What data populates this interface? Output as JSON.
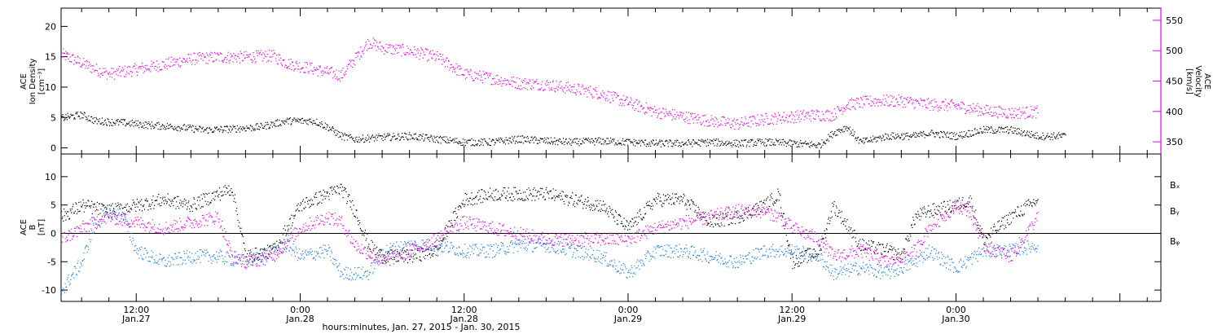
{
  "colors": {
    "density": "#000000",
    "velocity": "#e600e6",
    "bx": "#000000",
    "by": "#1e7fd8",
    "bz": "#e600e6",
    "frame": "#000000"
  },
  "x_axis": {
    "label": "hours:minutes, Jan. 27, 2015 - Jan. 30, 2015",
    "ticks": [
      {
        "time": "12:00",
        "day": "Jan.27",
        "hour": 12
      },
      {
        "time": "0:00",
        "day": "Jan.28",
        "hour": 24
      },
      {
        "time": "12:00",
        "day": "Jan.28",
        "hour": 36
      },
      {
        "time": "0:00",
        "day": "Jan.29",
        "hour": 48
      },
      {
        "time": "12:00",
        "day": "Jan.29",
        "hour": 60
      },
      {
        "time": "0:00",
        "day": "Jan.30",
        "hour": 72
      }
    ]
  },
  "chart_data": [
    {
      "type": "scatter",
      "panel": "top",
      "ylabel_left": [
        "ACE",
        "Ion Density",
        "[cm⁻³]"
      ],
      "ylabel_right": [
        "ACE",
        "Velocity",
        "[km/s]"
      ],
      "xlim_hours": [
        6.5,
        87.0
      ],
      "ylim_left": [
        -1,
        23
      ],
      "ylim_right": [
        330,
        570
      ],
      "yticks_left": [
        0,
        5,
        10,
        15,
        20
      ],
      "yticks_right": [
        350,
        400,
        450,
        500,
        550
      ],
      "series": [
        {
          "name": "Ion Density",
          "axis": "left",
          "key": "density",
          "points": [
            [
              6.5,
              5
            ],
            [
              8,
              5.5
            ],
            [
              9,
              4.5
            ],
            [
              11,
              4.2
            ],
            [
              13,
              3.8
            ],
            [
              15,
              3.5
            ],
            [
              17,
              3
            ],
            [
              19,
              3.2
            ],
            [
              21,
              3.5
            ],
            [
              23,
              4.5
            ],
            [
              25,
              4.5
            ],
            [
              26,
              3.5
            ],
            [
              27,
              2
            ],
            [
              28,
              1.5
            ],
            [
              30,
              1.8
            ],
            [
              32,
              2
            ],
            [
              34,
              1.5
            ],
            [
              36,
              1
            ],
            [
              38,
              1
            ],
            [
              40,
              1.5
            ],
            [
              42,
              1.2
            ],
            [
              44,
              1
            ],
            [
              46,
              1.2
            ],
            [
              48,
              1
            ],
            [
              50,
              0.8
            ],
            [
              52,
              0.8
            ],
            [
              54,
              1
            ],
            [
              56,
              0.8
            ],
            [
              58,
              1
            ],
            [
              60,
              0.8
            ],
            [
              62,
              0.5
            ],
            [
              63,
              2.5
            ],
            [
              64,
              3.5
            ],
            [
              65,
              1
            ],
            [
              67,
              2
            ],
            [
              69,
              2
            ],
            [
              70,
              2.5
            ],
            [
              72,
              2
            ],
            [
              74,
              3
            ],
            [
              76,
              3
            ],
            [
              78,
              2
            ],
            [
              80,
              2
            ]
          ]
        },
        {
          "name": "Velocity",
          "axis": "right",
          "key": "velocity",
          "points": [
            [
              6.5,
              495
            ],
            [
              8,
              480
            ],
            [
              9,
              470
            ],
            [
              10,
              462
            ],
            [
              12,
              470
            ],
            [
              14,
              478
            ],
            [
              16,
              487
            ],
            [
              18,
              490
            ],
            [
              20,
              490
            ],
            [
              22,
              492
            ],
            [
              23,
              480
            ],
            [
              25,
              470
            ],
            [
              27,
              460
            ],
            [
              29,
              515
            ],
            [
              30,
              505
            ],
            [
              32,
              500
            ],
            [
              34,
              490
            ],
            [
              36,
              462
            ],
            [
              38,
              455
            ],
            [
              40,
              447
            ],
            [
              42,
              445
            ],
            [
              44,
              438
            ],
            [
              46,
              430
            ],
            [
              48,
              415
            ],
            [
              50,
              400
            ],
            [
              52,
              392
            ],
            [
              54,
              385
            ],
            [
              56,
              380
            ],
            [
              58,
              388
            ],
            [
              60,
              392
            ],
            [
              62,
              395
            ],
            [
              63,
              395
            ],
            [
              64,
              412
            ],
            [
              66,
              418
            ],
            [
              68,
              418
            ],
            [
              70,
              412
            ],
            [
              72,
              410
            ],
            [
              74,
              402
            ],
            [
              76,
              398
            ],
            [
              78,
              400
            ]
          ]
        }
      ]
    },
    {
      "type": "scatter",
      "panel": "bottom",
      "ylabel_left": [
        "ACE",
        "B",
        "[nT]"
      ],
      "xlim_hours": [
        6.5,
        87.0
      ],
      "ylim": [
        -12,
        14
      ],
      "yticks": [
        -10,
        -5,
        0,
        5,
        10
      ],
      "zero_line": true,
      "legend": [
        "Bₓ",
        "Bᵧ",
        "Bᵩ"
      ],
      "series": [
        {
          "name": "Bₓ",
          "key": "bx",
          "points": [
            [
              6.5,
              3
            ],
            [
              8,
              5
            ],
            [
              10,
              4
            ],
            [
              12,
              5
            ],
            [
              14,
              6
            ],
            [
              16,
              5
            ],
            [
              18,
              7
            ],
            [
              19,
              8
            ],
            [
              20,
              -4
            ],
            [
              22,
              -3
            ],
            [
              24,
              5
            ],
            [
              26,
              7
            ],
            [
              27,
              8
            ],
            [
              28,
              4
            ],
            [
              29,
              -2
            ],
            [
              30,
              -4
            ],
            [
              32,
              -4
            ],
            [
              34,
              -3
            ],
            [
              35,
              2
            ],
            [
              36,
              6
            ],
            [
              38,
              7
            ],
            [
              40,
              7
            ],
            [
              42,
              7
            ],
            [
              44,
              6
            ],
            [
              46,
              5
            ],
            [
              48,
              1
            ],
            [
              50,
              6
            ],
            [
              52,
              6
            ],
            [
              54,
              2
            ],
            [
              56,
              3
            ],
            [
              58,
              5
            ],
            [
              59,
              7
            ],
            [
              60,
              -5
            ],
            [
              62,
              -3
            ],
            [
              63,
              5
            ],
            [
              65,
              -2
            ],
            [
              67,
              -3
            ],
            [
              68,
              -4
            ],
            [
              69,
              3
            ],
            [
              70,
              4
            ],
            [
              72,
              5
            ],
            [
              73,
              6
            ],
            [
              74,
              -1
            ],
            [
              76,
              3
            ],
            [
              78,
              6
            ]
          ]
        },
        {
          "name": "Bᵧ",
          "key": "by",
          "points": [
            [
              6.5,
              -10
            ],
            [
              8,
              -5
            ],
            [
              9,
              2
            ],
            [
              10,
              4
            ],
            [
              11,
              3
            ],
            [
              12,
              -3
            ],
            [
              14,
              -5
            ],
            [
              16,
              -4
            ],
            [
              18,
              -4
            ],
            [
              20,
              -5
            ],
            [
              21,
              -4
            ],
            [
              23,
              -2
            ],
            [
              24,
              -4
            ],
            [
              26,
              -3
            ],
            [
              27,
              -7
            ],
            [
              29,
              -7
            ],
            [
              30,
              -3
            ],
            [
              32,
              -2
            ],
            [
              34,
              -2
            ],
            [
              36,
              -3
            ],
            [
              38,
              -3
            ],
            [
              40,
              -2
            ],
            [
              42,
              -2
            ],
            [
              44,
              -3
            ],
            [
              46,
              -4
            ],
            [
              48,
              -7
            ],
            [
              50,
              -3
            ],
            [
              52,
              -3
            ],
            [
              54,
              -4
            ],
            [
              56,
              -5
            ],
            [
              58,
              -3
            ],
            [
              60,
              -3
            ],
            [
              62,
              -4
            ],
            [
              63,
              -7
            ],
            [
              65,
              -6
            ],
            [
              67,
              -7
            ],
            [
              68,
              -6
            ],
            [
              69,
              -5
            ],
            [
              70,
              -3
            ],
            [
              72,
              -6
            ],
            [
              74,
              -3
            ],
            [
              76,
              -3
            ],
            [
              78,
              -2
            ]
          ]
        },
        {
          "name": "Bᵩ",
          "key": "bz",
          "points": [
            [
              6.5,
              -1
            ],
            [
              8,
              1
            ],
            [
              10,
              3
            ],
            [
              12,
              2
            ],
            [
              14,
              1
            ],
            [
              16,
              2
            ],
            [
              18,
              3
            ],
            [
              19,
              -4
            ],
            [
              20,
              -5
            ],
            [
              22,
              -4
            ],
            [
              24,
              1
            ],
            [
              26,
              3
            ],
            [
              27,
              2
            ],
            [
              28,
              -2
            ],
            [
              30,
              -5
            ],
            [
              32,
              -3
            ],
            [
              34,
              -1
            ],
            [
              35,
              1
            ],
            [
              36,
              2
            ],
            [
              38,
              1
            ],
            [
              40,
              0
            ],
            [
              42,
              -1
            ],
            [
              44,
              -1
            ],
            [
              46,
              -1
            ],
            [
              48,
              -1
            ],
            [
              50,
              1
            ],
            [
              52,
              2
            ],
            [
              54,
              3
            ],
            [
              56,
              4
            ],
            [
              58,
              4
            ],
            [
              59,
              3
            ],
            [
              60,
              1
            ],
            [
              62,
              -1
            ],
            [
              63,
              -4
            ],
            [
              65,
              -3
            ],
            [
              67,
              -5
            ],
            [
              68,
              -4
            ],
            [
              69,
              -3
            ],
            [
              70,
              1
            ],
            [
              72,
              5
            ],
            [
              73,
              4
            ],
            [
              74,
              -2
            ],
            [
              76,
              -4
            ],
            [
              78,
              3
            ]
          ]
        }
      ]
    }
  ]
}
